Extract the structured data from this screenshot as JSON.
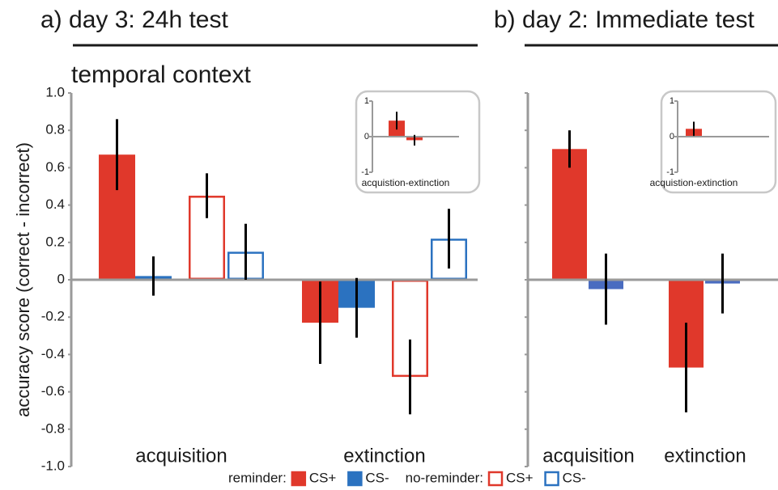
{
  "chart_data": [
    {
      "type": "bar",
      "title": "a) day 3: 24h test",
      "subtitle": "temporal context",
      "ylabel": "accuracy score (correct - incorrect)",
      "categories": [
        "acquisition",
        "extinction"
      ],
      "ylim": [
        -1,
        1
      ],
      "yticks": [
        {
          "value": 1,
          "label": "1.0"
        },
        0.8,
        0.6,
        0.4,
        0.2,
        0,
        -0.2,
        -0.4,
        -0.6,
        -0.8,
        {
          "value": -1,
          "label": "-1.0"
        }
      ],
      "series_groups": [
        {
          "name": "reminder:",
          "series": [
            {
              "name": "CS+",
              "color": "#e0382b",
              "filled": true,
              "values": [
                0.67,
                -0.23
              ],
              "errors": [
                0.19,
                0.22
              ]
            },
            {
              "name": "CS-",
              "color": "#2b72c0",
              "filled": true,
              "values": [
                0.02,
                -0.15
              ],
              "errors": [
                0.105,
                0.16
              ]
            }
          ]
        },
        {
          "name": "no-reminder:",
          "series": [
            {
              "name": "CS+",
              "color": "#e0382b",
              "filled": false,
              "values": [
                0.45,
                -0.52
              ],
              "errors": [
                0.12,
                0.2
              ]
            },
            {
              "name": "CS-",
              "color": "#2b72c0",
              "filled": false,
              "values": [
                0.15,
                0.22
              ],
              "errors": [
                0.15,
                0.16
              ]
            }
          ]
        }
      ]
    },
    {
      "type": "bar",
      "categories": [
        "acquistion-extinction"
      ],
      "ylim": [
        -1,
        1
      ],
      "yticks": [
        1,
        0,
        -1
      ],
      "series": [
        {
          "color": "#e0382b",
          "filled": true,
          "values": [
            0.45
          ],
          "errors": [
            0.25
          ]
        },
        {
          "color": "#e0382b",
          "filled": false,
          "values": [
            -0.1
          ],
          "errors": [
            0.15
          ]
        }
      ]
    },
    {
      "type": "bar",
      "title": "b) day 2: Immediate test",
      "categories": [
        "acquisition",
        "extinction"
      ],
      "ylim": [
        -1,
        1
      ],
      "yticks": [
        1,
        0.8,
        0.6,
        0.4,
        0.2,
        0,
        -0.2,
        -0.4,
        -0.6,
        -0.8,
        -1
      ],
      "ytick_labels": false,
      "series": [
        {
          "color": "#e0382b",
          "filled": true,
          "values": [
            0.7,
            -0.47
          ],
          "errors": [
            0.1,
            0.24
          ]
        },
        {
          "color": "#4a6cc0",
          "filled": true,
          "values": [
            -0.05,
            -0.02
          ],
          "errors": [
            0.19,
            0.16
          ]
        }
      ]
    },
    {
      "type": "bar",
      "categories": [
        "acquistion-extinction"
      ],
      "ylim": [
        -1,
        1
      ],
      "yticks": [
        1,
        0,
        -1
      ],
      "series": [
        {
          "color": "#e0382b",
          "filled": true,
          "values": [
            0.22
          ],
          "errors": [
            0.2
          ]
        }
      ]
    }
  ]
}
